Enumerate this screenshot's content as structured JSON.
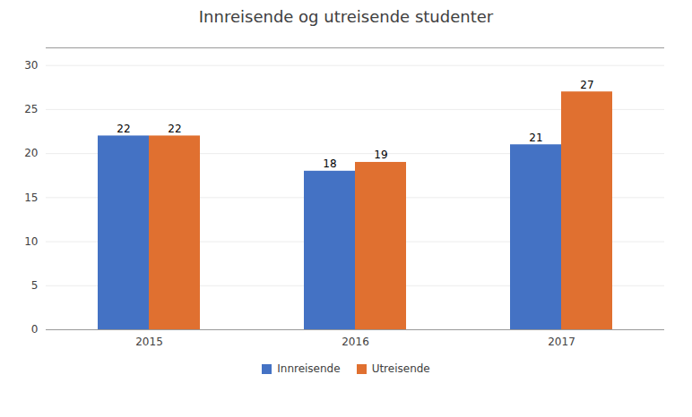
{
  "chart_data": {
    "type": "bar",
    "title": "Innreisende og utreisende studenter",
    "categories": [
      "2015",
      "2016",
      "2017"
    ],
    "series": [
      {
        "name": "Innreisende",
        "color": "#4472C4",
        "values": [
          22,
          18,
          21
        ]
      },
      {
        "name": "Utreisende",
        "color": "#E07030",
        "values": [
          22,
          19,
          27
        ]
      }
    ],
    "ylim": [
      0,
      32
    ],
    "yticks": [
      0,
      5,
      10,
      15,
      20,
      25,
      30
    ],
    "grid": true,
    "data_labels": true,
    "legend": "bottom"
  }
}
